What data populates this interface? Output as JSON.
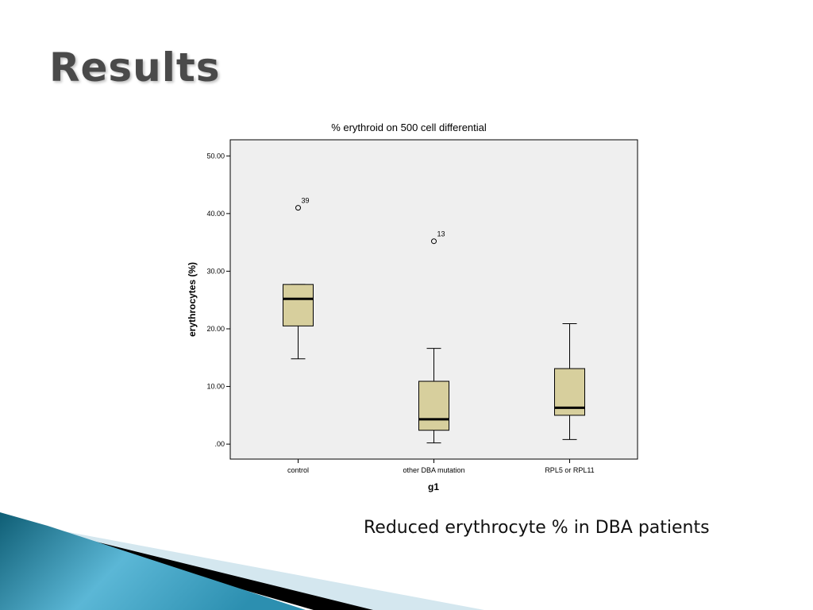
{
  "slide": {
    "title": "Results",
    "caption": "Reduced erythrocyte % in DBA patients"
  },
  "colors": {
    "plot_background": "#efefef",
    "box_fill": "#d7cf9d",
    "title_color": "#4a4a4a",
    "decor_dark_blue": "#0f5e75",
    "decor_light_blue": "#5bb7d6",
    "decor_black": "#000000",
    "decor_pale": "#d4e7ef"
  },
  "chart_data": {
    "type": "box",
    "title": "% erythroid on 500 cell differential",
    "xlabel": "g1",
    "ylabel": "erythrocytes (%)",
    "ylim": [
      -2.6,
      52.8
    ],
    "yticks": [
      0,
      10,
      20,
      30,
      40,
      50
    ],
    "ytick_labels": [
      ".00",
      "10.00",
      "20.00",
      "30.00",
      "40.00",
      "50.00"
    ],
    "grid": false,
    "categories": [
      "control",
      "other DBA mutation",
      "RPL5 or RPL11"
    ],
    "boxes": [
      {
        "category": "control",
        "whisker_low": 14.8,
        "q1": 20.5,
        "median": 25.2,
        "q3": 27.7,
        "whisker_high": 27.7,
        "outliers": [
          {
            "value": 41.0,
            "label": "39"
          }
        ]
      },
      {
        "category": "other DBA mutation",
        "whisker_low": 0.2,
        "q1": 2.4,
        "median": 4.3,
        "q3": 10.9,
        "whisker_high": 16.6,
        "outliers": [
          {
            "value": 35.2,
            "label": "13"
          }
        ]
      },
      {
        "category": "RPL5 or RPL11",
        "whisker_low": 0.8,
        "q1": 5.0,
        "median": 6.3,
        "q3": 13.1,
        "whisker_high": 20.9,
        "outliers": []
      }
    ]
  }
}
